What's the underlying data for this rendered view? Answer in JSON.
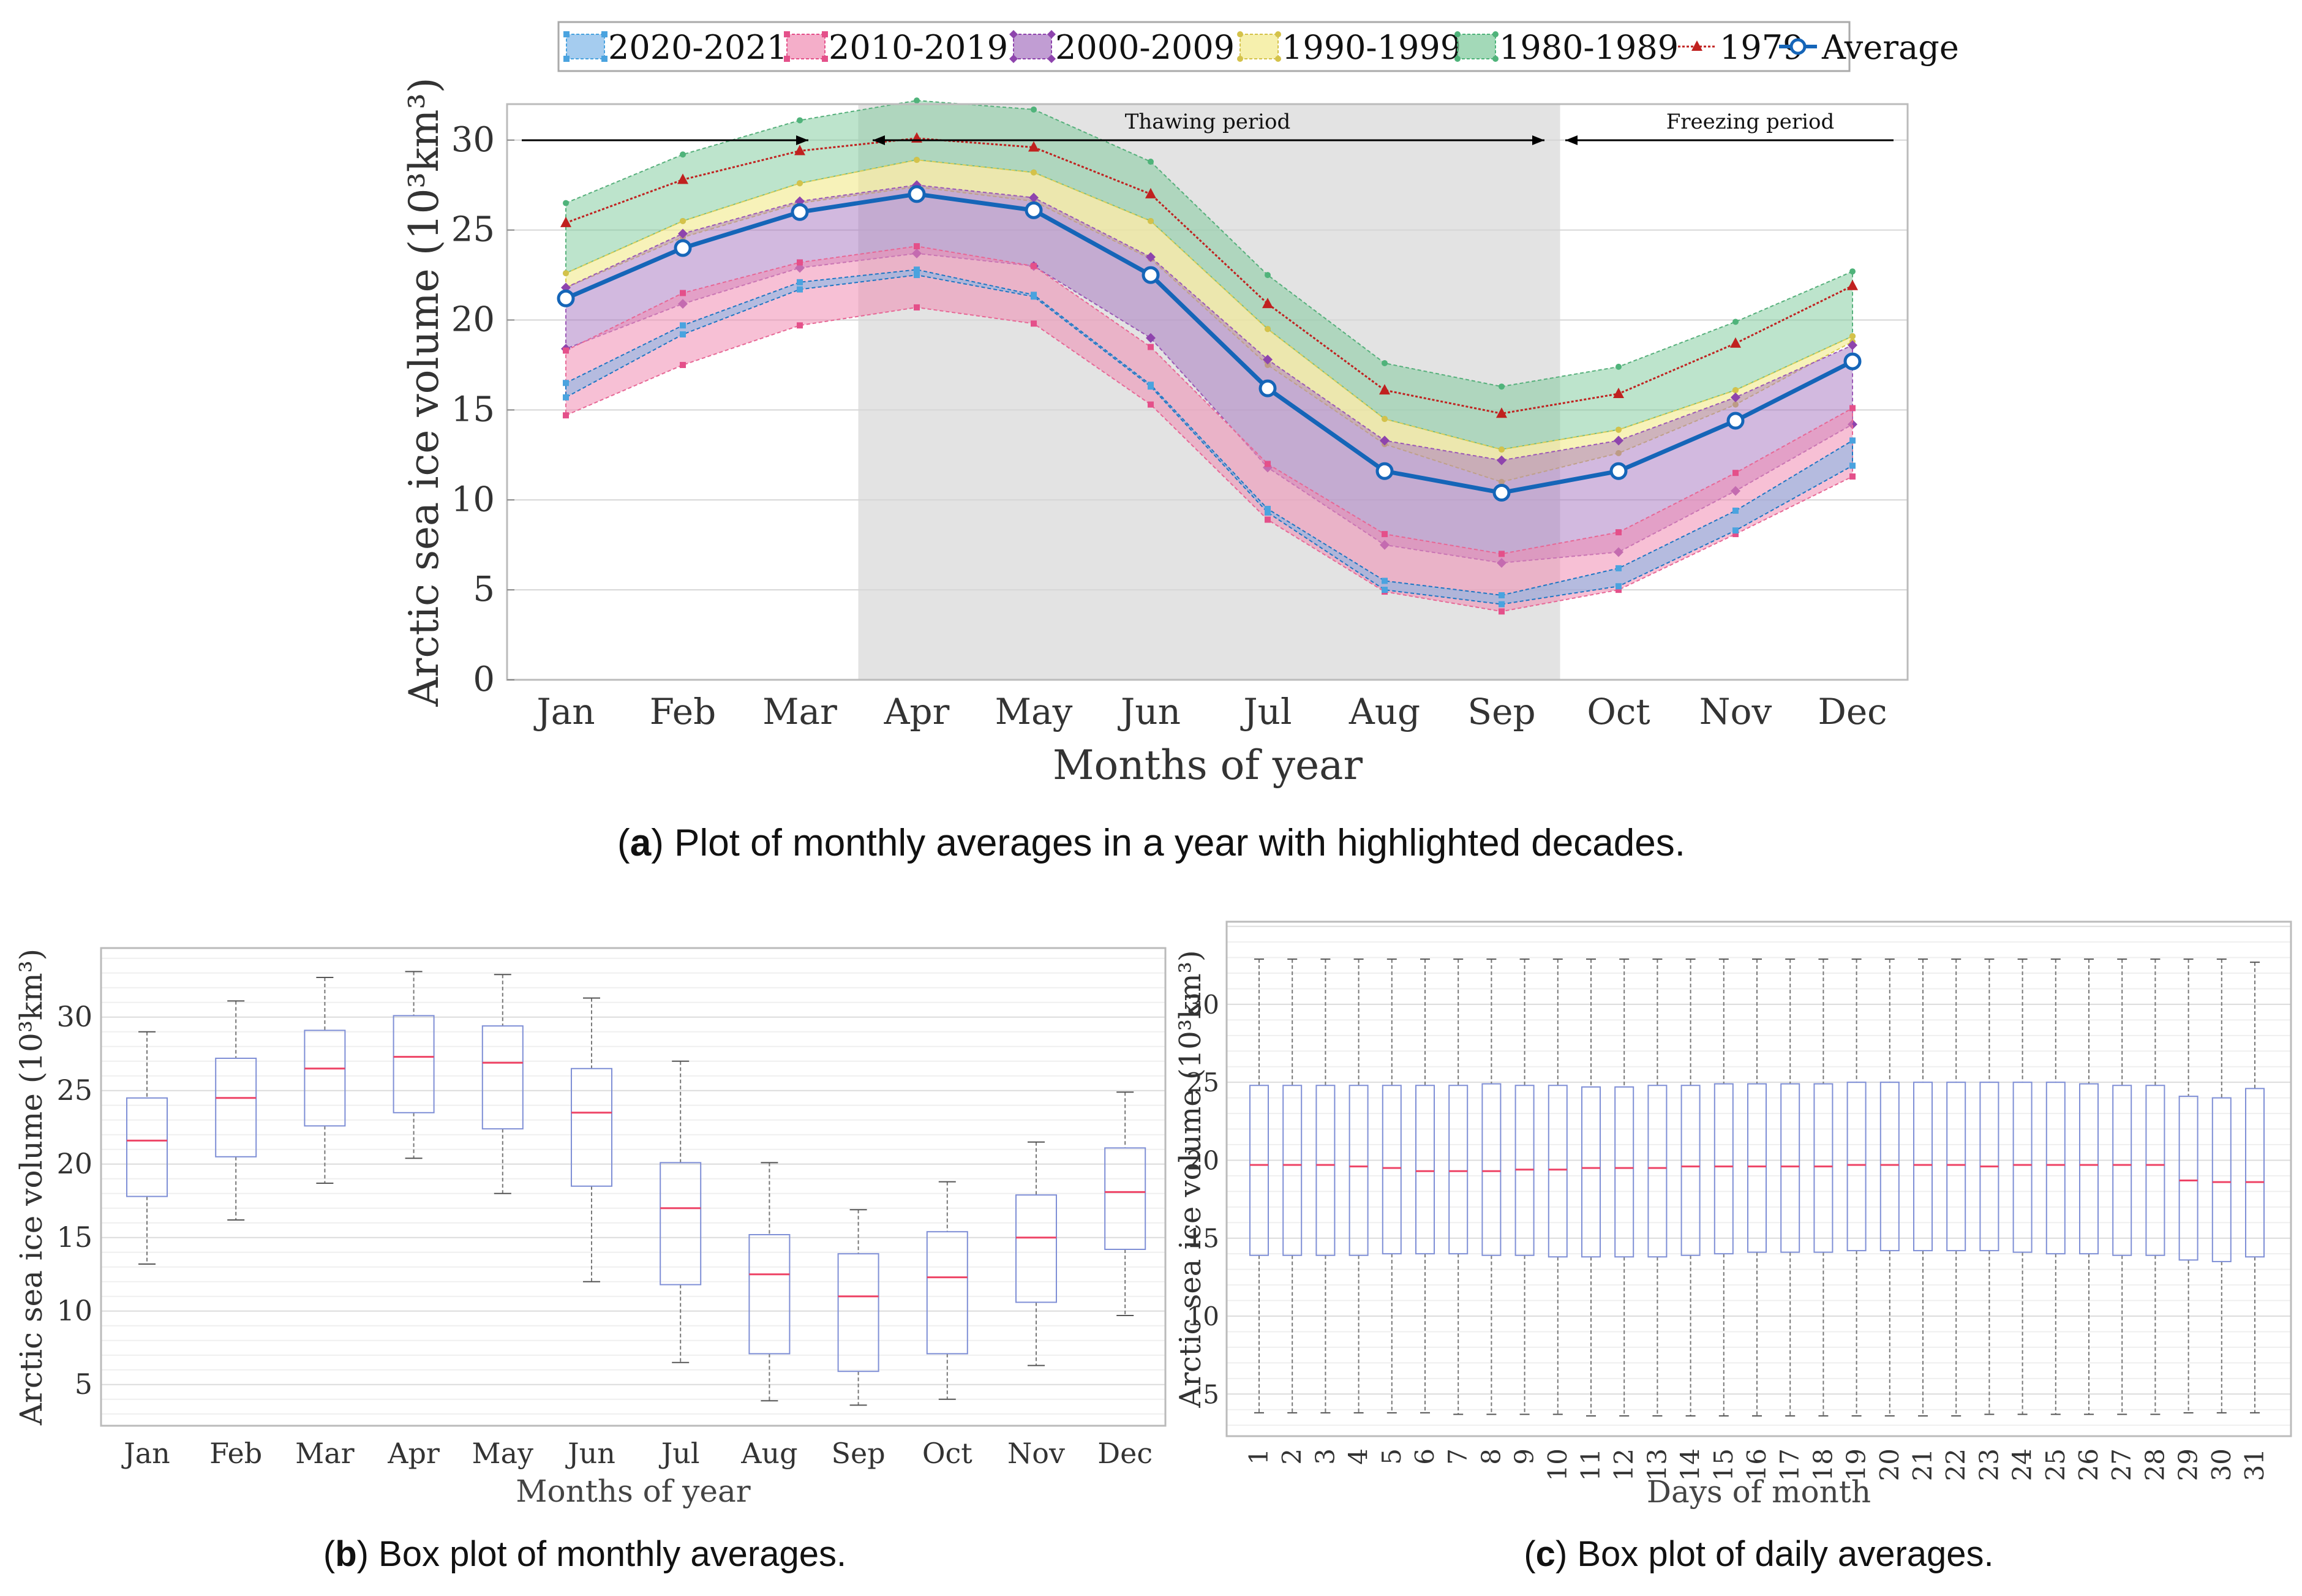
{
  "colors": {
    "c2020": "#1f77c4",
    "c2010": "#e4508a",
    "c2000": "#8e44ad",
    "c1990": "#e6d84e",
    "c1980": "#4fb37a",
    "c1979": "#c0211f",
    "avg": "#1565b8",
    "thaw_bg": "#e3e3e3",
    "box": "#7f8fd6",
    "median": "#ee4466",
    "whisker": "#777777"
  },
  "chart_data": [
    {
      "id": "a",
      "type": "area",
      "caption_letter": "a",
      "caption_text": " Plot of monthly averages in a year with highlighted decades.",
      "xlabel": "Months of year",
      "ylabel": "Arctic sea ice volume (10³km³)",
      "ylim": [
        0,
        32
      ],
      "yticks": [
        0,
        5,
        10,
        15,
        20,
        25,
        30
      ],
      "categories": [
        "Jan",
        "Feb",
        "Mar",
        "Apr",
        "May",
        "Jun",
        "Jul",
        "Aug",
        "Sep",
        "Oct",
        "Nov",
        "Dec"
      ],
      "legend": [
        "2020-2021",
        "2010-2019",
        "2000-2009",
        "1990-1999",
        "1980-1989",
        "1979",
        "Average"
      ],
      "annotations": {
        "thawing": "Thawing period",
        "freezing": "Freezing period",
        "thaw_start_month": 3.5,
        "thaw_end_month": 9.5
      },
      "series": [
        {
          "name": "2020-2021",
          "lower": [
            15.7,
            19.2,
            21.7,
            22.5,
            21.3,
            16.3,
            9.3,
            5.0,
            4.2,
            5.2,
            8.3,
            11.9
          ],
          "upper": [
            16.5,
            19.7,
            22.1,
            22.8,
            21.4,
            16.4,
            9.5,
            5.5,
            4.7,
            6.2,
            9.4,
            13.3
          ]
        },
        {
          "name": "2010-2019",
          "lower": [
            14.7,
            17.5,
            19.7,
            20.7,
            19.8,
            15.3,
            8.9,
            4.9,
            3.8,
            5.0,
            8.1,
            11.3
          ],
          "upper": [
            18.3,
            21.5,
            23.2,
            24.1,
            23.0,
            18.5,
            12.0,
            8.1,
            7.0,
            8.2,
            11.5,
            15.1
          ]
        },
        {
          "name": "2000-2009",
          "lower": [
            18.4,
            20.9,
            22.9,
            23.7,
            23.0,
            19.0,
            11.8,
            7.5,
            6.5,
            7.1,
            10.5,
            14.2
          ],
          "upper": [
            21.8,
            24.8,
            26.6,
            27.5,
            26.8,
            23.5,
            17.8,
            13.3,
            12.2,
            13.3,
            15.7,
            18.6
          ]
        },
        {
          "name": "1990-1999",
          "lower": [
            21.8,
            24.6,
            26.5,
            27.4,
            26.6,
            23.4,
            17.5,
            13.1,
            11.0,
            12.6,
            15.3,
            18.8
          ],
          "upper": [
            22.6,
            25.5,
            27.6,
            28.9,
            28.2,
            25.5,
            19.5,
            14.5,
            12.8,
            13.9,
            16.1,
            19.1
          ]
        },
        {
          "name": "1980-1989",
          "lower": [
            22.6,
            25.5,
            27.6,
            28.9,
            28.2,
            25.5,
            19.5,
            14.5,
            12.8,
            13.9,
            16.1,
            19.1
          ],
          "upper": [
            26.5,
            29.2,
            31.1,
            32.2,
            31.7,
            28.8,
            22.5,
            17.6,
            16.3,
            17.4,
            19.9,
            22.7
          ]
        },
        {
          "name": "1979",
          "values": [
            25.4,
            27.8,
            29.4,
            30.1,
            29.6,
            27.0,
            20.9,
            16.1,
            14.8,
            15.9,
            18.7,
            21.9
          ]
        },
        {
          "name": "Average",
          "values": [
            21.2,
            24.0,
            26.0,
            27.0,
            26.1,
            22.5,
            16.2,
            11.6,
            10.4,
            11.6,
            14.4,
            17.7
          ]
        }
      ]
    },
    {
      "id": "b",
      "type": "box",
      "caption_letter": "b",
      "caption_text": " Box plot of monthly averages.",
      "xlabel": "Months of year",
      "ylabel": "Arctic sea ice volume (10³km³)",
      "ylim": [
        2.2,
        34.7
      ],
      "yticks": [
        5,
        10,
        15,
        20,
        25,
        30
      ],
      "categories": [
        "Jan",
        "Feb",
        "Mar",
        "Apr",
        "May",
        "Jun",
        "Jul",
        "Aug",
        "Sep",
        "Oct",
        "Nov",
        "Dec"
      ],
      "boxes": [
        {
          "min": 13.2,
          "q1": 17.8,
          "median": 21.6,
          "q3": 24.5,
          "max": 29.0
        },
        {
          "min": 16.2,
          "q1": 20.5,
          "median": 24.5,
          "q3": 27.2,
          "max": 31.1
        },
        {
          "min": 18.7,
          "q1": 22.6,
          "median": 26.5,
          "q3": 29.1,
          "max": 32.7
        },
        {
          "min": 20.4,
          "q1": 23.5,
          "median": 27.3,
          "q3": 30.1,
          "max": 33.1
        },
        {
          "min": 18.0,
          "q1": 22.4,
          "median": 26.9,
          "q3": 29.4,
          "max": 32.9
        },
        {
          "min": 12.0,
          "q1": 18.5,
          "median": 23.5,
          "q3": 26.5,
          "max": 31.3
        },
        {
          "min": 6.5,
          "q1": 11.8,
          "median": 17.0,
          "q3": 20.1,
          "max": 27.0
        },
        {
          "min": 3.9,
          "q1": 7.1,
          "median": 12.5,
          "q3": 15.2,
          "max": 20.1
        },
        {
          "min": 3.6,
          "q1": 5.9,
          "median": 11.0,
          "q3": 13.9,
          "max": 16.9
        },
        {
          "min": 4.0,
          "q1": 7.1,
          "median": 12.3,
          "q3": 15.4,
          "max": 18.8
        },
        {
          "min": 6.3,
          "q1": 10.6,
          "median": 15.0,
          "q3": 17.9,
          "max": 21.5
        },
        {
          "min": 9.7,
          "q1": 14.2,
          "median": 18.1,
          "q3": 21.1,
          "max": 24.9
        }
      ]
    },
    {
      "id": "c",
      "type": "box",
      "caption_letter": "c",
      "caption_text": " Box plot of daily averages.",
      "xlabel": "Days of month",
      "ylabel": "Arctic sea ice volume (10³km³)",
      "ylim": [
        2.3,
        35.3
      ],
      "yticks": [
        5,
        10,
        15,
        20,
        25,
        30
      ],
      "categories": [
        "1",
        "2",
        "3",
        "4",
        "5",
        "6",
        "7",
        "8",
        "9",
        "10",
        "11",
        "12",
        "13",
        "14",
        "15",
        "16",
        "17",
        "18",
        "19",
        "20",
        "21",
        "22",
        "23",
        "24",
        "25",
        "26",
        "27",
        "28",
        "29",
        "30",
        "31"
      ],
      "boxes": [
        {
          "min": 3.8,
          "q1": 13.9,
          "median": 19.7,
          "q3": 24.8,
          "max": 32.9
        },
        {
          "min": 3.8,
          "q1": 13.9,
          "median": 19.7,
          "q3": 24.8,
          "max": 32.9
        },
        {
          "min": 3.8,
          "q1": 13.9,
          "median": 19.7,
          "q3": 24.8,
          "max": 32.9
        },
        {
          "min": 3.8,
          "q1": 13.9,
          "median": 19.6,
          "q3": 24.8,
          "max": 32.9
        },
        {
          "min": 3.8,
          "q1": 14.0,
          "median": 19.5,
          "q3": 24.8,
          "max": 32.9
        },
        {
          "min": 3.8,
          "q1": 14.0,
          "median": 19.3,
          "q3": 24.8,
          "max": 32.9
        },
        {
          "min": 3.7,
          "q1": 14.0,
          "median": 19.3,
          "q3": 24.8,
          "max": 32.9
        },
        {
          "min": 3.7,
          "q1": 13.9,
          "median": 19.3,
          "q3": 24.9,
          "max": 32.9
        },
        {
          "min": 3.7,
          "q1": 13.9,
          "median": 19.4,
          "q3": 24.8,
          "max": 32.9
        },
        {
          "min": 3.7,
          "q1": 13.8,
          "median": 19.4,
          "q3": 24.8,
          "max": 32.9
        },
        {
          "min": 3.6,
          "q1": 13.8,
          "median": 19.5,
          "q3": 24.7,
          "max": 32.9
        },
        {
          "min": 3.6,
          "q1": 13.8,
          "median": 19.5,
          "q3": 24.7,
          "max": 32.9
        },
        {
          "min": 3.6,
          "q1": 13.8,
          "median": 19.5,
          "q3": 24.8,
          "max": 32.9
        },
        {
          "min": 3.6,
          "q1": 13.9,
          "median": 19.6,
          "q3": 24.8,
          "max": 32.9
        },
        {
          "min": 3.6,
          "q1": 14.0,
          "median": 19.6,
          "q3": 24.9,
          "max": 32.9
        },
        {
          "min": 3.6,
          "q1": 14.1,
          "median": 19.6,
          "q3": 24.9,
          "max": 32.9
        },
        {
          "min": 3.6,
          "q1": 14.1,
          "median": 19.6,
          "q3": 24.9,
          "max": 32.9
        },
        {
          "min": 3.6,
          "q1": 14.1,
          "median": 19.6,
          "q3": 24.9,
          "max": 32.9
        },
        {
          "min": 3.6,
          "q1": 14.2,
          "median": 19.7,
          "q3": 25.0,
          "max": 32.9
        },
        {
          "min": 3.6,
          "q1": 14.2,
          "median": 19.7,
          "q3": 25.0,
          "max": 32.9
        },
        {
          "min": 3.6,
          "q1": 14.2,
          "median": 19.7,
          "q3": 25.0,
          "max": 32.9
        },
        {
          "min": 3.6,
          "q1": 14.2,
          "median": 19.7,
          "q3": 25.0,
          "max": 32.9
        },
        {
          "min": 3.7,
          "q1": 14.2,
          "median": 19.6,
          "q3": 25.0,
          "max": 32.9
        },
        {
          "min": 3.7,
          "q1": 14.1,
          "median": 19.7,
          "q3": 25.0,
          "max": 32.9
        },
        {
          "min": 3.7,
          "q1": 14.0,
          "median": 19.7,
          "q3": 25.0,
          "max": 32.9
        },
        {
          "min": 3.7,
          "q1": 14.0,
          "median": 19.7,
          "q3": 24.9,
          "max": 32.9
        },
        {
          "min": 3.7,
          "q1": 13.9,
          "median": 19.7,
          "q3": 24.8,
          "max": 32.9
        },
        {
          "min": 3.7,
          "q1": 13.9,
          "median": 19.7,
          "q3": 24.8,
          "max": 32.9
        },
        {
          "min": 3.8,
          "q1": 13.6,
          "median": 18.7,
          "q3": 24.1,
          "max": 32.9
        },
        {
          "min": 3.8,
          "q1": 13.5,
          "median": 18.6,
          "q3": 24.0,
          "max": 32.9
        },
        {
          "min": 3.8,
          "q1": 13.8,
          "median": 18.6,
          "q3": 24.6,
          "max": 32.7
        }
      ]
    }
  ]
}
